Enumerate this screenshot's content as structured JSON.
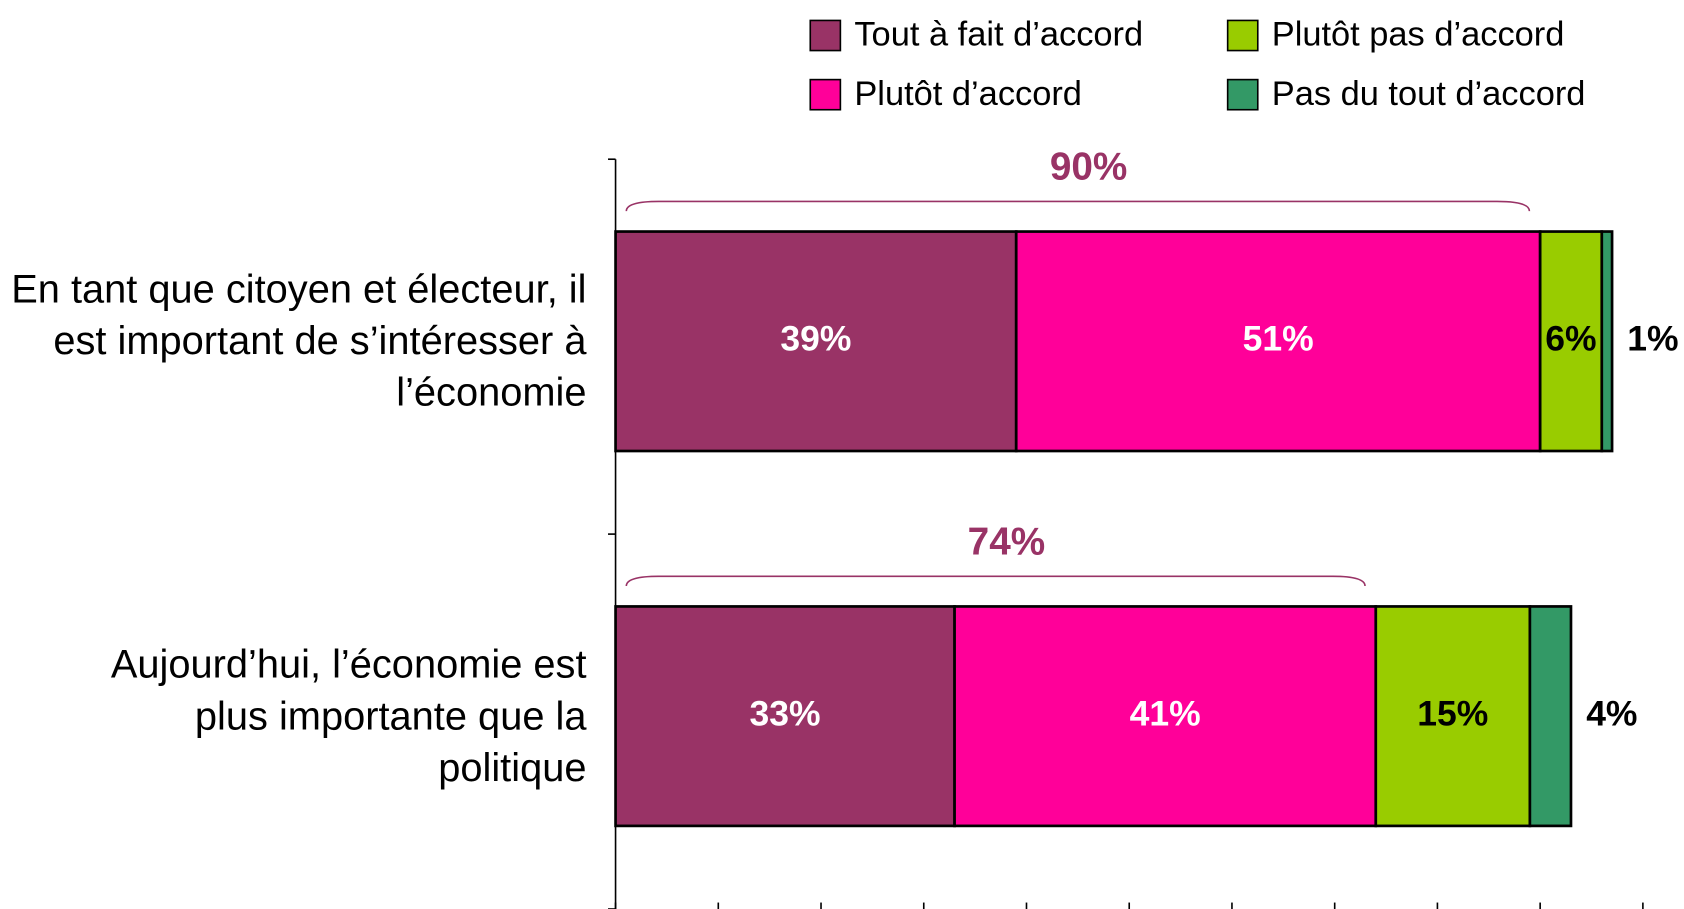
{
  "chart_data": {
    "type": "stacked-bar",
    "orientation": "horizontal",
    "categories": [
      "En tant que citoyen et électeur, il est important de s’intéresser à l’économie",
      "Aujourd’hui, l’économie est plus importante que la politique"
    ],
    "series": [
      {
        "name": "Tout à fait d’accord",
        "color": "#993366",
        "values": [
          39,
          33
        ],
        "value_labels": [
          "39%",
          "33%"
        ]
      },
      {
        "name": "Plutôt d’accord",
        "color": "#ff0099",
        "values": [
          51,
          41
        ],
        "value_labels": [
          "51%",
          "41%"
        ]
      },
      {
        "name": "Plutôt pas d’accord",
        "color": "#99cc00",
        "values": [
          6,
          15
        ],
        "value_labels": [
          "6%",
          "15%"
        ]
      },
      {
        "name": "Pas du tout d’accord",
        "color": "#339966",
        "values": [
          1,
          4
        ],
        "value_labels": [
          "1%",
          "4%"
        ]
      }
    ],
    "annotations": [
      {
        "label": "90%",
        "value": 90
      },
      {
        "label": "74%",
        "value": 74
      }
    ],
    "xlim": [
      0,
      100
    ],
    "xticks": [
      0,
      10,
      20,
      30,
      40,
      50,
      60,
      70,
      80,
      90,
      100
    ],
    "legend": "top-right"
  }
}
